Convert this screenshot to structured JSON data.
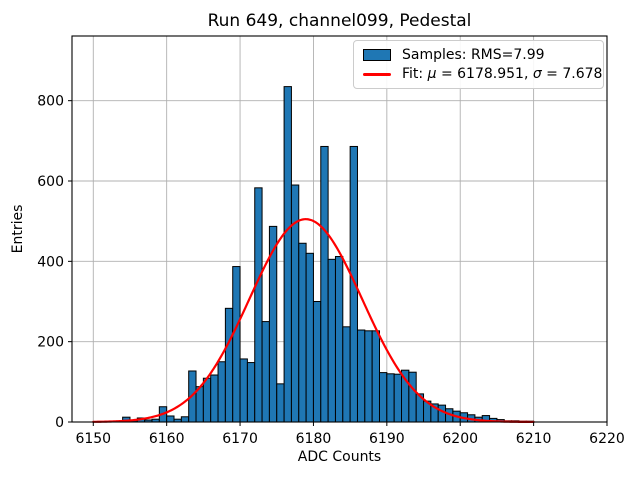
{
  "figure": {
    "title": "Run 649, channel099, Pedestal",
    "xlabel": "ADC Counts",
    "ylabel": "Entries"
  },
  "legend": {
    "samples_label": "Samples: RMS=7.99",
    "fit_prefix": "Fit: ",
    "fit_mu_symbol": "μ",
    "fit_mu_value": " = 6178.951, ",
    "fit_sigma_symbol": "σ",
    "fit_sigma_value": " = 7.678",
    "samples_swatch_color": "#1f77b4",
    "fit_line_color": "#ff0000"
  },
  "chart_data": {
    "type": "bar",
    "subtype": "histogram",
    "title": "Run 649, channel099, Pedestal",
    "xlabel": "ADC Counts",
    "ylabel": "Entries",
    "xlim": [
      6147.1,
      6220
    ],
    "ylim": [
      0,
      961
    ],
    "x_ticks": [
      6150,
      6160,
      6170,
      6180,
      6190,
      6200,
      6210,
      6220
    ],
    "y_ticks": [
      0,
      200,
      400,
      600,
      800
    ],
    "grid": true,
    "legend_position": "upper right",
    "histogram": {
      "bin_start": 6154,
      "bin_width": 1,
      "counts": [
        12,
        3,
        10,
        5,
        7,
        38,
        15,
        7,
        13,
        127,
        88,
        109,
        117,
        150,
        283,
        387,
        157,
        148,
        583,
        250,
        487,
        95,
        835,
        590,
        445,
        420,
        300,
        686,
        405,
        412,
        237,
        686,
        229,
        227,
        227,
        123,
        120,
        119,
        129,
        124,
        70,
        52,
        45,
        42,
        33,
        27,
        23,
        18,
        12,
        16,
        9,
        6,
        3,
        3,
        2,
        2
      ]
    },
    "fit": {
      "type": "gaussian",
      "mu": 6178.951,
      "sigma": 7.678,
      "amplitude": 505,
      "x_range": [
        6150,
        6210
      ]
    },
    "colors": {
      "bar_fill": "#1f77b4",
      "bar_edge": "#000000",
      "fit_line": "#ff0000",
      "grid": "#b0b0b0",
      "spine": "#000000",
      "tick_text": "#000000"
    }
  }
}
